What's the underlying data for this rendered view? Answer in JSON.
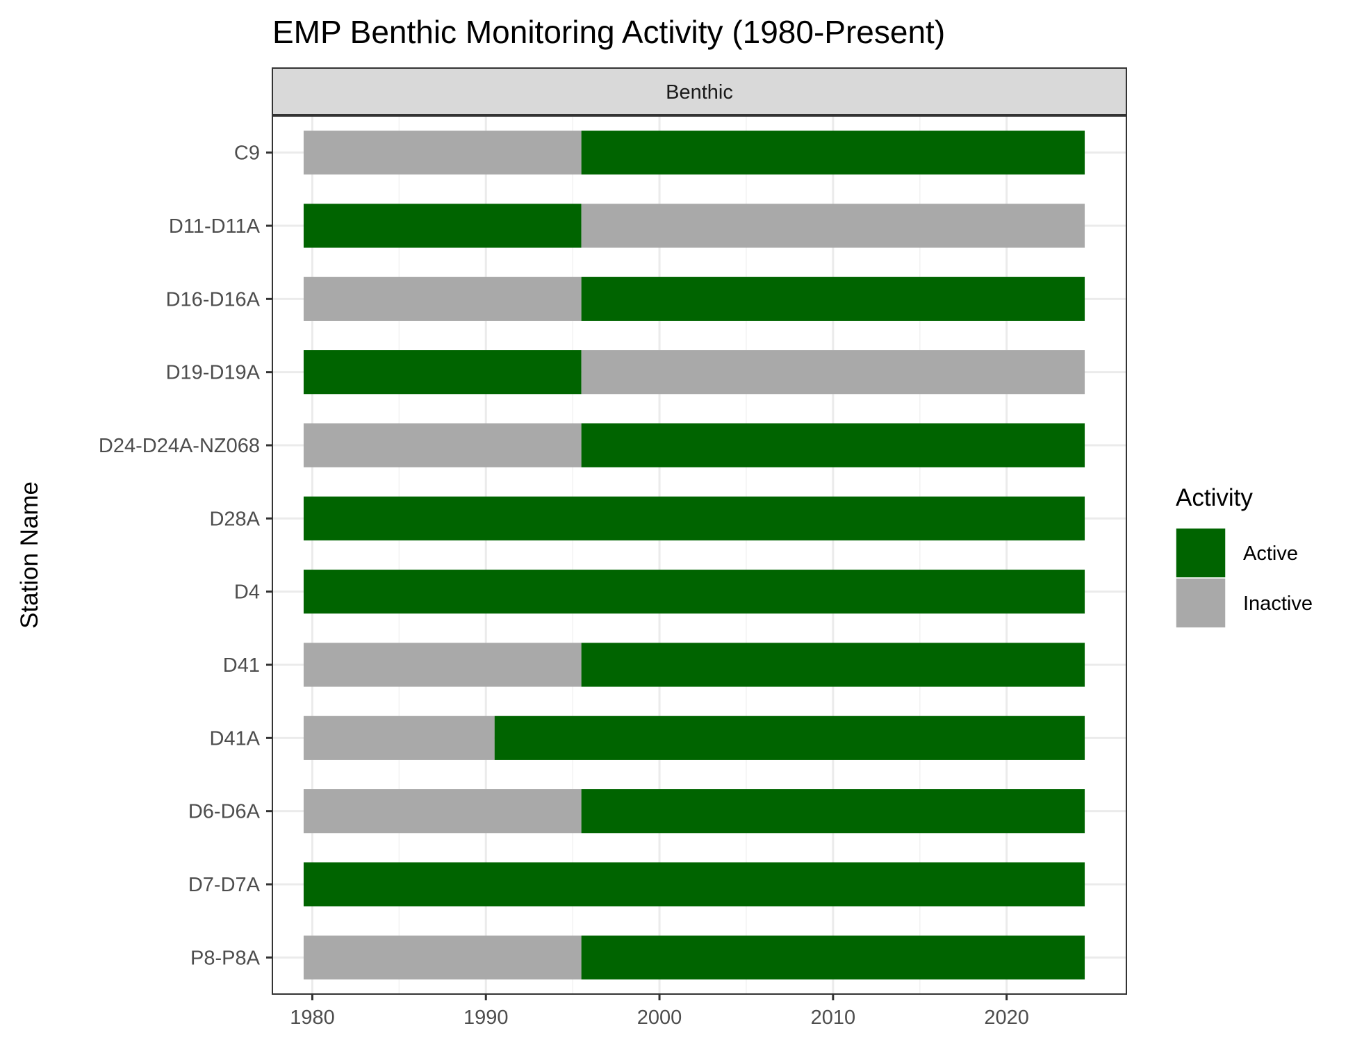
{
  "chart_data": {
    "type": "bar",
    "orientation": "horizontal",
    "stacked": true,
    "title": "EMP Benthic Monitoring Activity (1980-Present)",
    "facet_label": "Benthic",
    "xlabel": "",
    "ylabel": "Station Name",
    "xlim": [
      1977.7,
      2026.9
    ],
    "xticks": [
      1980,
      1990,
      2000,
      2010,
      2020
    ],
    "grid": true,
    "legend": {
      "title": "Activity",
      "position": "right",
      "entries": [
        {
          "label": "Active",
          "color": "#006400"
        },
        {
          "label": "Inactive",
          "color": "#a9a9a9"
        }
      ]
    },
    "categories": [
      "C9",
      "D11-D11A",
      "D16-D16A",
      "D19-D19A",
      "D24-D24A-NZ068",
      "D28A",
      "D4",
      "D41",
      "D41A",
      "D6-D6A",
      "D7-D7A",
      "P8-P8A"
    ],
    "rows": [
      {
        "station": "C9",
        "segments": [
          {
            "start": 1979.5,
            "end": 1995.5,
            "activity": "Inactive"
          },
          {
            "start": 1995.5,
            "end": 2024.5,
            "activity": "Active"
          }
        ]
      },
      {
        "station": "D11-D11A",
        "segments": [
          {
            "start": 1979.5,
            "end": 1995.5,
            "activity": "Active"
          },
          {
            "start": 1995.5,
            "end": 2024.5,
            "activity": "Inactive"
          }
        ]
      },
      {
        "station": "D16-D16A",
        "segments": [
          {
            "start": 1979.5,
            "end": 1995.5,
            "activity": "Inactive"
          },
          {
            "start": 1995.5,
            "end": 2024.5,
            "activity": "Active"
          }
        ]
      },
      {
        "station": "D19-D19A",
        "segments": [
          {
            "start": 1979.5,
            "end": 1995.5,
            "activity": "Active"
          },
          {
            "start": 1995.5,
            "end": 2024.5,
            "activity": "Inactive"
          }
        ]
      },
      {
        "station": "D24-D24A-NZ068",
        "segments": [
          {
            "start": 1979.5,
            "end": 1995.5,
            "activity": "Inactive"
          },
          {
            "start": 1995.5,
            "end": 2024.5,
            "activity": "Active"
          }
        ]
      },
      {
        "station": "D28A",
        "segments": [
          {
            "start": 1979.5,
            "end": 2024.5,
            "activity": "Active"
          }
        ]
      },
      {
        "station": "D4",
        "segments": [
          {
            "start": 1979.5,
            "end": 2024.5,
            "activity": "Active"
          }
        ]
      },
      {
        "station": "D41",
        "segments": [
          {
            "start": 1979.5,
            "end": 1995.5,
            "activity": "Inactive"
          },
          {
            "start": 1995.5,
            "end": 2024.5,
            "activity": "Active"
          }
        ]
      },
      {
        "station": "D41A",
        "segments": [
          {
            "start": 1979.5,
            "end": 1990.5,
            "activity": "Inactive"
          },
          {
            "start": 1990.5,
            "end": 2024.5,
            "activity": "Active"
          }
        ]
      },
      {
        "station": "D6-D6A",
        "segments": [
          {
            "start": 1979.5,
            "end": 1995.5,
            "activity": "Inactive"
          },
          {
            "start": 1995.5,
            "end": 2024.5,
            "activity": "Active"
          }
        ]
      },
      {
        "station": "D7-D7A",
        "segments": [
          {
            "start": 1979.5,
            "end": 2024.5,
            "activity": "Active"
          }
        ]
      },
      {
        "station": "P8-P8A",
        "segments": [
          {
            "start": 1979.5,
            "end": 1995.5,
            "activity": "Inactive"
          },
          {
            "start": 1995.5,
            "end": 2024.5,
            "activity": "Active"
          }
        ]
      }
    ]
  }
}
